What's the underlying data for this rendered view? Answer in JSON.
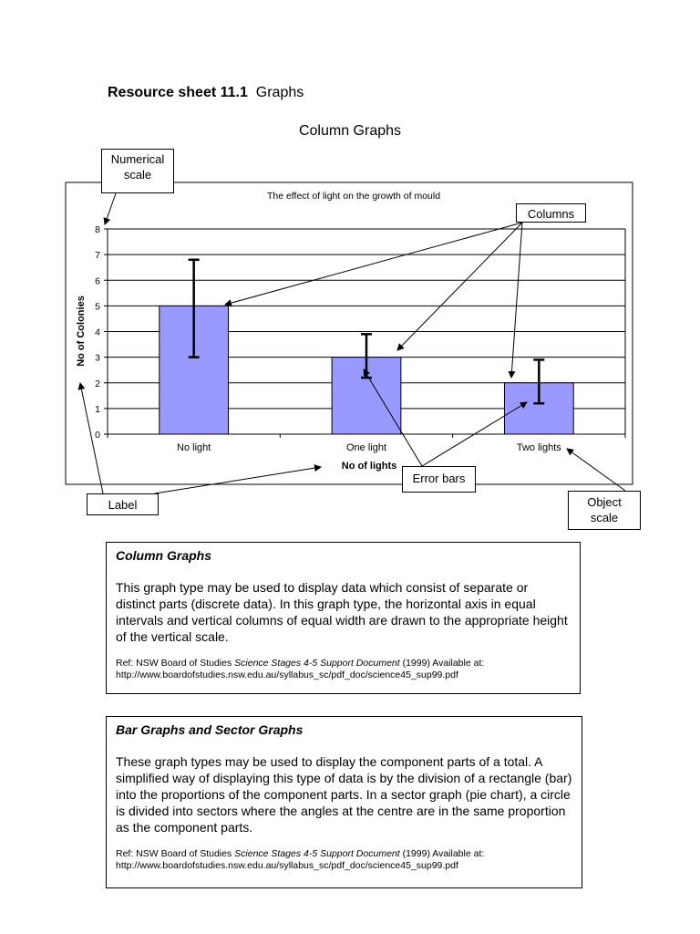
{
  "header": {
    "sheet_label": "Resource sheet 11.1",
    "sheet_topic": "Graphs",
    "section_title": "Column Graphs"
  },
  "callouts": {
    "numerical_scale_line1": "Numerical",
    "numerical_scale_line2": "scale",
    "columns": "Columns",
    "label": "Label",
    "error_bars": "Error bars",
    "object_scale_line1": "Object",
    "object_scale_line2": "scale"
  },
  "chart_data": {
    "type": "bar",
    "title": "The effect of light on the growth of mould",
    "categories": [
      "No light",
      "One light",
      "Two lights"
    ],
    "values": [
      5,
      3,
      2
    ],
    "error_bars": [
      [
        3,
        6.8
      ],
      [
        2.2,
        3.9
      ],
      [
        1.2,
        2.9
      ]
    ],
    "xlabel": "No of lights",
    "ylabel": "No of Colonies",
    "ylim": [
      0,
      8
    ],
    "yticks": [
      0,
      1,
      2,
      3,
      4,
      5,
      6,
      7,
      8
    ],
    "grid": true,
    "bar_color": "#9999ff"
  },
  "boxes": [
    {
      "title": "Column Graphs",
      "body": "This graph type may be used to display data which consist of separate or distinct parts (discrete data). In this graph type, the horizontal axis in equal intervals and vertical columns of equal width are drawn to the appropriate height of the vertical scale.",
      "ref_prefix": "Ref: NSW Board of Studies ",
      "ref_doc": "Science Stages 4-5 Support Document",
      "ref_suffix": " (1999) Available at:",
      "ref_url": "http://www.boardofstudies.nsw.edu.au/syllabus_sc/pdf_doc/science45_sup99.pdf"
    },
    {
      "title": "Bar Graphs and Sector Graphs",
      "body": "These graph types may be used to display the component parts of a total. A simplified way of displaying this type of data is by the division of a rectangle (bar) into the proportions of the component parts. In a sector graph (pie chart), a circle is divided into sectors where the angles at the centre are in the same proportion as the component parts.",
      "ref_prefix": "Ref: NSW Board of Studies ",
      "ref_doc": "Science Stages 4-5 Support Document",
      "ref_suffix": " (1999) Available at:",
      "ref_url": "http://www.boardofstudies.nsw.edu.au/syllabus_sc/pdf_doc/science45_sup99.pdf"
    }
  ]
}
